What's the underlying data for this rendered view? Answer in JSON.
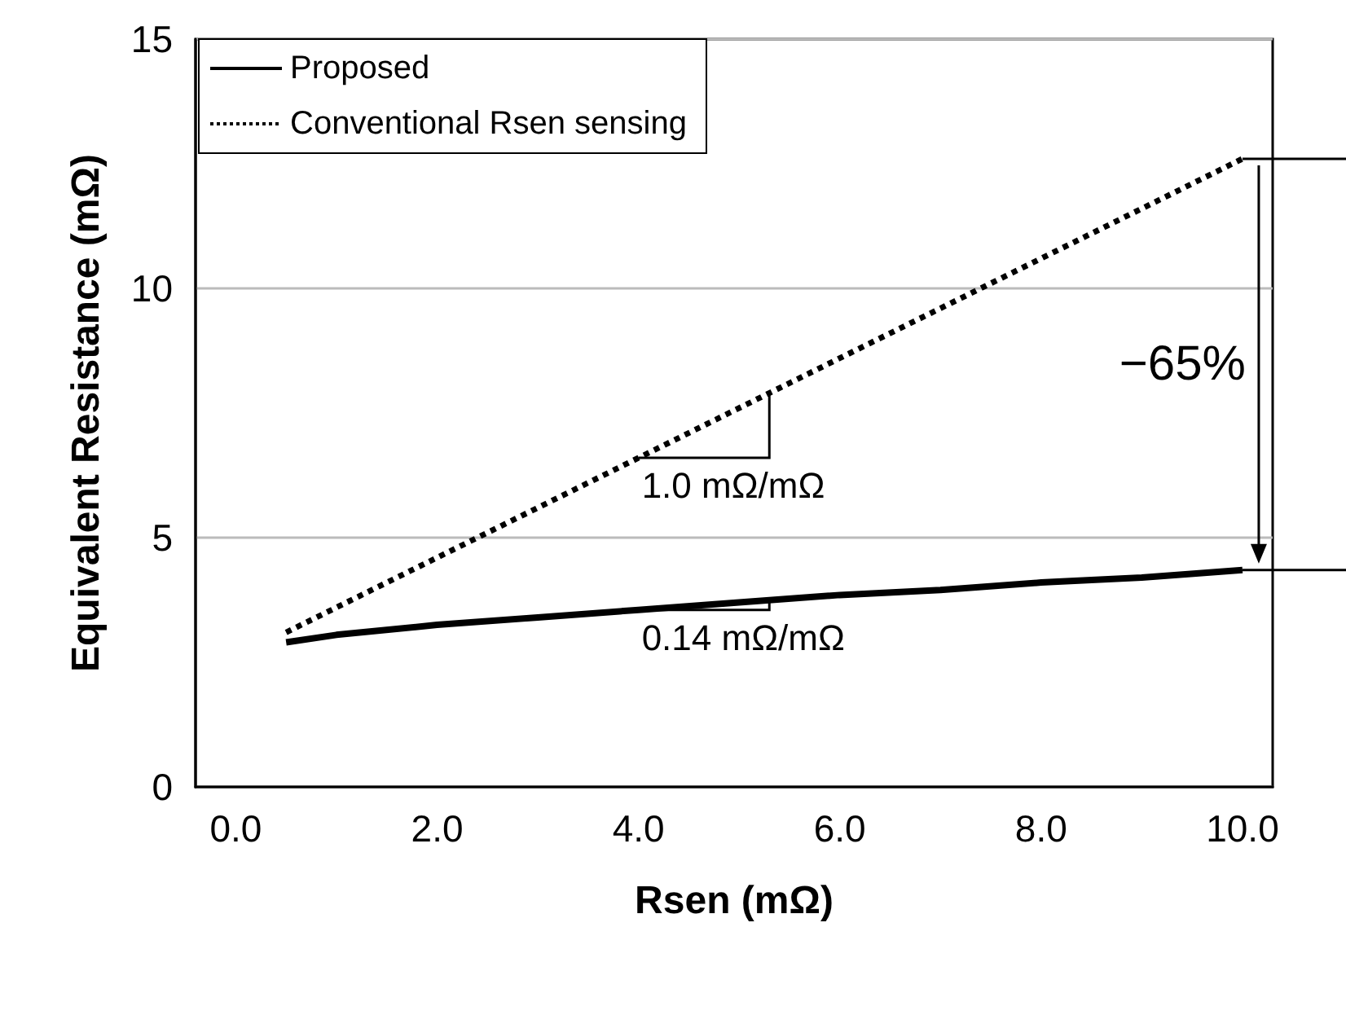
{
  "chart_data": {
    "type": "line",
    "xlabel": "Rsen (mΩ)",
    "ylabel": "Equivalent Resistance (mΩ)",
    "xlim": [
      -0.4,
      10.3
    ],
    "xticks": [
      {
        "value": 0,
        "label": "0.0"
      },
      {
        "value": 2,
        "label": "2.0"
      },
      {
        "value": 4,
        "label": "4.0"
      },
      {
        "value": 6,
        "label": "6.0"
      },
      {
        "value": 8,
        "label": "8.0"
      },
      {
        "value": 10,
        "label": "10.0"
      }
    ],
    "ylim": [
      0,
      15
    ],
    "yticks": [
      0,
      5,
      10,
      15
    ],
    "grid": "y",
    "legend": "top left",
    "marker": "none",
    "series": [
      {
        "name": "Proposed",
        "color": "#000000",
        "line_style": "solid",
        "x": [
          0.5,
          1,
          2,
          3,
          4,
          5,
          6,
          7,
          8,
          9,
          10
        ],
        "values": [
          2.9,
          3.05,
          3.25,
          3.4,
          3.55,
          3.7,
          3.85,
          3.95,
          4.1,
          4.2,
          4.35
        ]
      },
      {
        "name": "Conventional Rsen sensing",
        "color": "#000000",
        "line_style": "dotted",
        "x": [
          0.5,
          10
        ],
        "values": [
          3.1,
          12.6
        ]
      }
    ],
    "annotations": [
      {
        "text": "1.0 mΩ/mΩ",
        "x": 4.0,
        "y": 6.6
      },
      {
        "text": "0.14 mΩ/mΩ",
        "x": 4.0,
        "y": 3.55
      },
      "−65%"
    ]
  }
}
